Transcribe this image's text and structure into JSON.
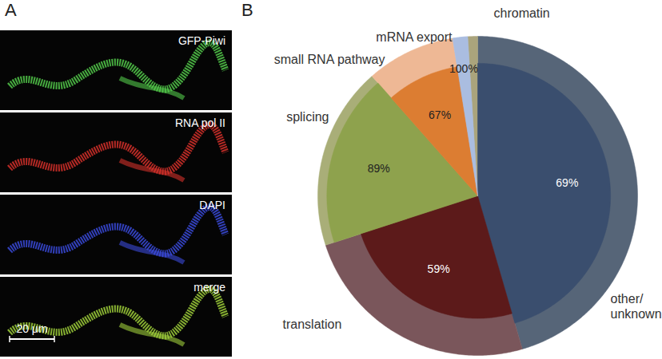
{
  "panels": {
    "A": {
      "label": "A",
      "images": [
        "GFP-Piwi",
        "RNA pol II",
        "DAPI",
        "merge"
      ],
      "scale_bar": "20 μm"
    },
    "B": {
      "label": "B"
    }
  },
  "chart_data": {
    "type": "pie",
    "categories": [
      "other/unknown",
      "translation",
      "splicing",
      "small RNA pathway",
      "mRNA export",
      "chromatin"
    ],
    "values": [
      45.5,
      24.5,
      18.5,
      9,
      1.5,
      1
    ],
    "colors": [
      "#566578",
      "#7a565b",
      "#a9ae78",
      "#eeb895",
      "#b5c5e2",
      "#aaa47c"
    ],
    "inner_values": [
      69,
      59,
      89,
      67,
      100,
      null
    ],
    "inner_value_labels": [
      "69%",
      "59%",
      "89%",
      "67%",
      "100%",
      null
    ],
    "inner_colors": [
      "#3a4e6e",
      "#5c1a1a",
      "#8ea24d",
      "#dc7d32",
      "#aabde0",
      null
    ],
    "data_labels": true
  }
}
